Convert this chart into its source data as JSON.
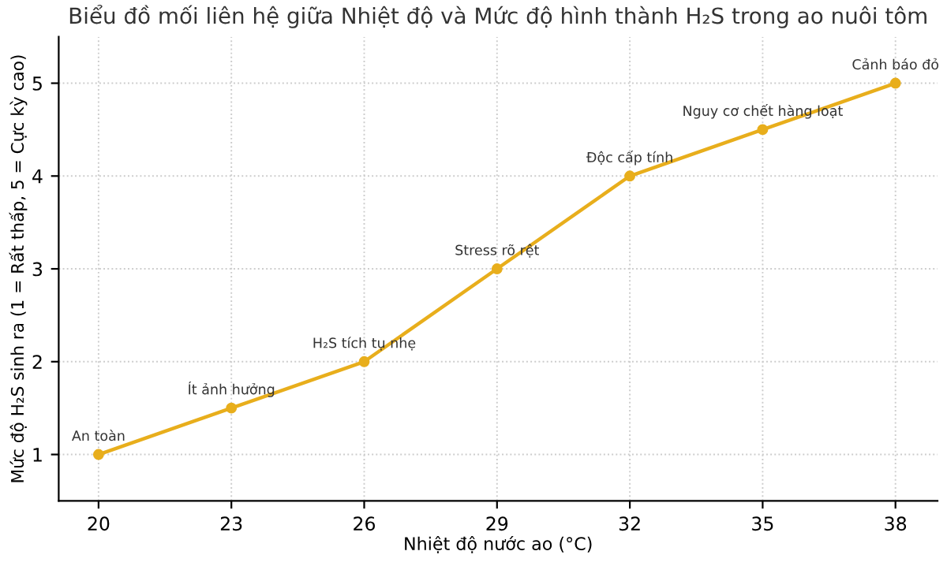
{
  "chart_data": {
    "type": "line",
    "title": "Biểu đồ mối liên hệ giữa Nhiệt độ và Mức độ hình thành H₂S trong ao nuôi tôm",
    "xlabel": "Nhiệt độ nước ao (°C)",
    "ylabel": "Mức độ H₂S sinh ra (1 = Rất thấp, 5 = Cực kỳ cao)",
    "x": [
      20,
      23,
      26,
      29,
      32,
      35,
      38
    ],
    "series": [
      {
        "color": "#e8ae1c",
        "values": [
          1,
          1.5,
          2,
          3,
          4,
          4.5,
          5
        ]
      }
    ],
    "xlim": [
      19.1,
      38.95
    ],
    "ylim": [
      0.5,
      5.5
    ],
    "xticks": [
      20,
      23,
      26,
      29,
      32,
      35,
      38
    ],
    "yticks": [
      1,
      2,
      3,
      4,
      5
    ],
    "grid": true,
    "marker": "circle",
    "line_style": "solid",
    "annotations": [
      {
        "text": "An toàn",
        "x": 20,
        "y": 1
      },
      {
        "text": "Ít ảnh hưởng",
        "x": 23,
        "y": 1.5
      },
      {
        "text": "H₂S tích tụ nhẹ",
        "x": 26,
        "y": 2
      },
      {
        "text": "Stress rõ rệt",
        "x": 29,
        "y": 3
      },
      {
        "text": "Độc cấp tính",
        "x": 32,
        "y": 4
      },
      {
        "text": "Nguy cơ chết hàng loạt",
        "x": 35,
        "y": 4.5
      },
      {
        "text": "Cảnh báo đỏ",
        "x": 38,
        "y": 5
      }
    ]
  }
}
